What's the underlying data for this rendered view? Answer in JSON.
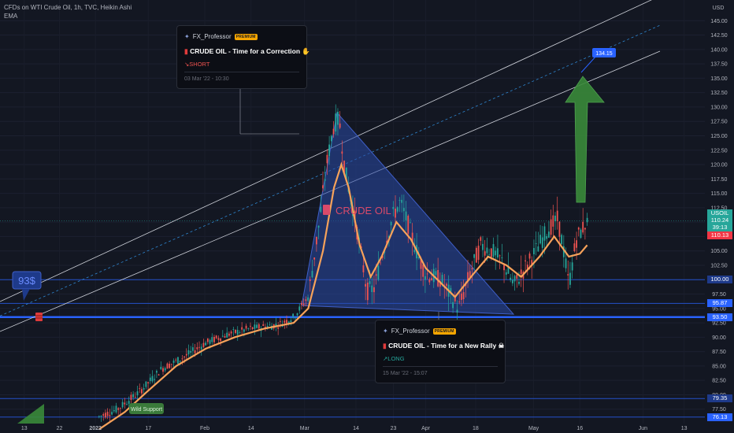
{
  "header": {
    "line1": "CFDs on WTI Crude Oil, 1h, TVC, Heikin Ashi",
    "line2": "EMA"
  },
  "currency": "USD",
  "chart_data": {
    "type": "candlestick",
    "title": "CFDs on WTI Crude Oil, 1h, TVC, Heikin Ashi",
    "indicator": "EMA",
    "ylim": [
      75,
      147.5
    ],
    "y_ticks": [
      77.5,
      80,
      82.5,
      85,
      87.5,
      90,
      92.5,
      95,
      97.5,
      100,
      102.5,
      105,
      107.5,
      110,
      112.5,
      115,
      117.5,
      120,
      122.5,
      125,
      127.5,
      130,
      132.5,
      135,
      137.5,
      140,
      142.5,
      145
    ],
    "x_ticks": [
      "13",
      "22",
      "2022",
      "17",
      "Feb",
      "14",
      "Mar",
      "14",
      "23",
      "Apr",
      "18",
      "May",
      "16",
      "Jun",
      "13"
    ],
    "price_path": [
      {
        "t": 0.135,
        "p": 76.2
      },
      {
        "t": 0.16,
        "p": 77.5
      },
      {
        "t": 0.19,
        "p": 80.5
      },
      {
        "t": 0.22,
        "p": 84.5
      },
      {
        "t": 0.25,
        "p": 86.5
      },
      {
        "t": 0.28,
        "p": 89
      },
      {
        "t": 0.31,
        "p": 90.5
      },
      {
        "t": 0.34,
        "p": 91.5
      },
      {
        "t": 0.37,
        "p": 92
      },
      {
        "t": 0.38,
        "p": 92.2
      },
      {
        "t": 0.4,
        "p": 93.5
      },
      {
        "t": 0.42,
        "p": 97
      },
      {
        "t": 0.435,
        "p": 110
      },
      {
        "t": 0.445,
        "p": 120
      },
      {
        "t": 0.455,
        "p": 127
      },
      {
        "t": 0.462,
        "p": 128
      },
      {
        "t": 0.47,
        "p": 119
      },
      {
        "t": 0.48,
        "p": 113
      },
      {
        "t": 0.49,
        "p": 106
      },
      {
        "t": 0.5,
        "p": 98
      },
      {
        "t": 0.51,
        "p": 98.5
      },
      {
        "t": 0.52,
        "p": 104
      },
      {
        "t": 0.535,
        "p": 111
      },
      {
        "t": 0.545,
        "p": 113.5
      },
      {
        "t": 0.555,
        "p": 110
      },
      {
        "t": 0.57,
        "p": 104
      },
      {
        "t": 0.58,
        "p": 101
      },
      {
        "t": 0.6,
        "p": 100
      },
      {
        "t": 0.615,
        "p": 97
      },
      {
        "t": 0.625,
        "p": 95
      },
      {
        "t": 0.64,
        "p": 101
      },
      {
        "t": 0.655,
        "p": 106
      },
      {
        "t": 0.67,
        "p": 105
      },
      {
        "t": 0.685,
        "p": 103
      },
      {
        "t": 0.7,
        "p": 99
      },
      {
        "t": 0.715,
        "p": 102
      },
      {
        "t": 0.73,
        "p": 105
      },
      {
        "t": 0.745,
        "p": 108.5
      },
      {
        "t": 0.76,
        "p": 110.5
      },
      {
        "t": 0.768,
        "p": 105
      },
      {
        "t": 0.775,
        "p": 99
      },
      {
        "t": 0.785,
        "p": 107
      },
      {
        "t": 0.8,
        "p": 110.3
      }
    ],
    "ema_path": [
      {
        "t": 0.135,
        "p": 74
      },
      {
        "t": 0.17,
        "p": 77
      },
      {
        "t": 0.2,
        "p": 80.5
      },
      {
        "t": 0.24,
        "p": 85
      },
      {
        "t": 0.28,
        "p": 88
      },
      {
        "t": 0.32,
        "p": 90
      },
      {
        "t": 0.36,
        "p": 91.5
      },
      {
        "t": 0.4,
        "p": 92.5
      },
      {
        "t": 0.42,
        "p": 95
      },
      {
        "t": 0.44,
        "p": 105
      },
      {
        "t": 0.455,
        "p": 116
      },
      {
        "t": 0.465,
        "p": 120
      },
      {
        "t": 0.475,
        "p": 116
      },
      {
        "t": 0.49,
        "p": 106
      },
      {
        "t": 0.505,
        "p": 100.5
      },
      {
        "t": 0.52,
        "p": 104
      },
      {
        "t": 0.54,
        "p": 110
      },
      {
        "t": 0.56,
        "p": 107
      },
      {
        "t": 0.58,
        "p": 102
      },
      {
        "t": 0.6,
        "p": 99.5
      },
      {
        "t": 0.62,
        "p": 97
      },
      {
        "t": 0.645,
        "p": 101
      },
      {
        "t": 0.665,
        "p": 104
      },
      {
        "t": 0.69,
        "p": 102.5
      },
      {
        "t": 0.71,
        "p": 100.5
      },
      {
        "t": 0.735,
        "p": 104
      },
      {
        "t": 0.755,
        "p": 107.5
      },
      {
        "t": 0.775,
        "p": 104
      },
      {
        "t": 0.79,
        "p": 104.5
      },
      {
        "t": 0.8,
        "p": 106
      }
    ],
    "horizontal_levels": [
      100.0,
      95.87,
      93.5,
      79.35,
      76.13
    ],
    "current_price": 110.24,
    "countdown": "39:13",
    "prev_close": 110.13,
    "target_price": "134.15",
    "annotations": [
      "93$",
      "CRUDE OIL",
      "Wild Support"
    ]
  },
  "price_tags": [
    {
      "text": "USOIL",
      "bg": "#26a69a",
      "color": "#ffffff"
    },
    {
      "text": "110.24",
      "bg": "#26a69a",
      "color": "#ffffff"
    },
    {
      "text": "39:13",
      "bg": "#26a69a",
      "color": "#ffffff"
    },
    {
      "text": "110.13",
      "bg": "#f23645",
      "color": "#ffffff"
    },
    {
      "text": "100.00",
      "bg": "#1e3a8a",
      "color": "#ffffff"
    },
    {
      "text": "95.87",
      "bg": "#2962ff",
      "color": "#ffffff"
    },
    {
      "text": "93.50",
      "bg": "#2962ff",
      "color": "#ffffff"
    },
    {
      "text": "79.35",
      "bg": "#1e3a8a",
      "color": "#ffffff"
    },
    {
      "text": "76.13",
      "bg": "#2962ff",
      "color": "#ffffff"
    }
  ],
  "idea_cards": [
    {
      "author": "FX_Professor",
      "badge": "PREMIUM",
      "title": "CRUDE OIL - Time for a Correction",
      "direction": "SHORT",
      "date": "03 Mar '22 - 10:30"
    },
    {
      "author": "FX_Professor",
      "badge": "PREMIUM",
      "title": "CRUDE OIL - Time for a New Rally",
      "direction": "LONG",
      "date": "15 Mar '22 - 15:07"
    }
  ],
  "colors": {
    "background": "#131722",
    "up_candle": "#26a69a",
    "down_candle": "#ef5350",
    "ema": "#f7a25a",
    "level": "#2962ff",
    "triangle": "#2a4ba8",
    "arrow": "#3a8a3a",
    "short": "#ef5350",
    "long": "#26a69a"
  }
}
